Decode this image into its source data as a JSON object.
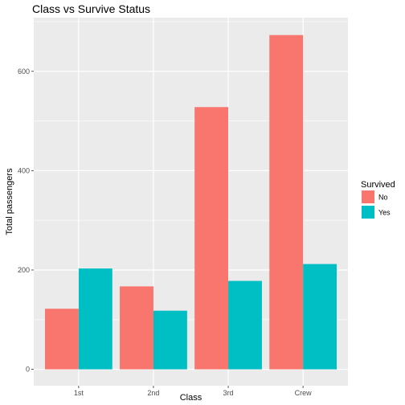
{
  "chart_data": {
    "type": "bar",
    "title": "Class vs Survive Status",
    "xlabel": "Class",
    "ylabel": "Total passengers",
    "categories": [
      "1st",
      "2nd",
      "3rd",
      "Crew"
    ],
    "series": [
      {
        "name": "No",
        "values": [
          122,
          167,
          528,
          673
        ],
        "color": "#F8766D"
      },
      {
        "name": "Yes",
        "values": [
          203,
          118,
          178,
          212
        ],
        "color": "#00BFC4"
      }
    ],
    "ylim": [
      -33,
      708
    ],
    "yticks": [
      0,
      200,
      400,
      600
    ],
    "yticklabels": [
      "0",
      "200",
      "400",
      "600"
    ],
    "grid": true,
    "panel_background": "#EBEBEB",
    "grid_color": "#FFFFFF",
    "legend": {
      "title": "Survived",
      "position": "right"
    }
  }
}
